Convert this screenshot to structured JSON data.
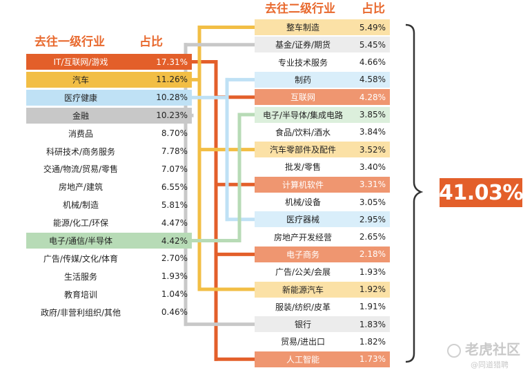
{
  "chart_data": {
    "type": "table",
    "total_label": "41.03%",
    "primary": {
      "header_name": "去往一级行业",
      "header_pct": "占比",
      "rows": [
        {
          "name": "IT/互联网/游戏",
          "pct": "17.31%",
          "color": "#e35f2a",
          "text_white": true
        },
        {
          "name": "汽车",
          "pct": "11.26%",
          "color": "#f2be45",
          "text_white": false
        },
        {
          "name": "医疗健康",
          "pct": "10.28%",
          "color": "#bfe1f5",
          "text_white": false
        },
        {
          "name": "金融",
          "pct": "10.23%",
          "color": "#c8c8c8",
          "text_white": false
        },
        {
          "name": "消费品",
          "pct": "8.70%",
          "color": "",
          "text_white": false
        },
        {
          "name": "科研技术/商务服务",
          "pct": "7.78%",
          "color": "",
          "text_white": false
        },
        {
          "name": "交通/物流/贸易/零售",
          "pct": "7.07%",
          "color": "",
          "text_white": false
        },
        {
          "name": "房地产/建筑",
          "pct": "6.55%",
          "color": "",
          "text_white": false
        },
        {
          "name": "机械/制造",
          "pct": "5.81%",
          "color": "",
          "text_white": false
        },
        {
          "name": "能源/化工/环保",
          "pct": "4.47%",
          "color": "",
          "text_white": false
        },
        {
          "name": "电子/通信/半导体",
          "pct": "4.42%",
          "color": "#b7dbb6",
          "text_white": false
        },
        {
          "name": "广告/传媒/文化/体育",
          "pct": "2.70%",
          "color": "",
          "text_white": false
        },
        {
          "name": "生活服务",
          "pct": "1.93%",
          "color": "",
          "text_white": false
        },
        {
          "name": "教育培训",
          "pct": "1.04%",
          "color": "",
          "text_white": false
        },
        {
          "name": "政府/非营利组织/其他",
          "pct": "0.46%",
          "color": "",
          "text_white": false
        }
      ]
    },
    "secondary": {
      "header_name": "去往二级行业",
      "header_pct": "占比",
      "rows": [
        {
          "name": "整车制造",
          "pct": "5.49%",
          "color": "#fbe1a6",
          "parent": 1,
          "text_white": false
        },
        {
          "name": "基金/证券/期货",
          "pct": "5.45%",
          "color": "#ececec",
          "parent": 3,
          "text_white": false
        },
        {
          "name": "专业技术服务",
          "pct": "4.66%",
          "color": "",
          "parent": -1,
          "text_white": false
        },
        {
          "name": "制药",
          "pct": "4.58%",
          "color": "#d9eefa",
          "parent": 2,
          "text_white": false
        },
        {
          "name": "互联网",
          "pct": "4.28%",
          "color": "#ef9670",
          "parent": 0,
          "text_white": true
        },
        {
          "name": "电子/半导体/集成电路",
          "pct": "3.85%",
          "color": "#dcefdc",
          "parent": 10,
          "text_white": false
        },
        {
          "name": "食品/饮料/酒水",
          "pct": "3.84%",
          "color": "",
          "parent": -1,
          "text_white": false
        },
        {
          "name": "汽车零部件及配件",
          "pct": "3.52%",
          "color": "#fbe1a6",
          "parent": 1,
          "text_white": false
        },
        {
          "name": "批发/零售",
          "pct": "3.40%",
          "color": "",
          "parent": -1,
          "text_white": false
        },
        {
          "name": "计算机软件",
          "pct": "3.31%",
          "color": "#ef9670",
          "parent": 0,
          "text_white": true
        },
        {
          "name": "机械/设备",
          "pct": "3.05%",
          "color": "",
          "parent": -1,
          "text_white": false
        },
        {
          "name": "医疗器械",
          "pct": "2.95%",
          "color": "#d9eefa",
          "parent": 2,
          "text_white": false
        },
        {
          "name": "房地产开发经营",
          "pct": "2.65%",
          "color": "",
          "parent": -1,
          "text_white": false
        },
        {
          "name": "电子商务",
          "pct": "2.18%",
          "color": "#ef9670",
          "parent": 0,
          "text_white": true
        },
        {
          "name": "广告/公关/会展",
          "pct": "1.93%",
          "color": "",
          "parent": -1,
          "text_white": false
        },
        {
          "name": "新能源汽车",
          "pct": "1.92%",
          "color": "#fbe1a6",
          "parent": 1,
          "text_white": false
        },
        {
          "name": "服装/纺织/皮革",
          "pct": "1.91%",
          "color": "",
          "parent": -1,
          "text_white": false
        },
        {
          "name": "银行",
          "pct": "1.83%",
          "color": "#ececec",
          "parent": 3,
          "text_white": false
        },
        {
          "name": "贸易/进出口",
          "pct": "1.82%",
          "color": "",
          "parent": -1,
          "text_white": false
        },
        {
          "name": "人工智能",
          "pct": "1.73%",
          "color": "#ef9670",
          "parent": 0,
          "text_white": true
        }
      ]
    },
    "connector_colors": [
      "#e35f2a",
      "#f2be45",
      "#bfe1f5",
      "#c8c8c8",
      "",
      "",
      "",
      "",
      "",
      "",
      "#b7dbb6"
    ]
  },
  "watermark": {
    "main": "老虎社区",
    "sub": "@同道猎聘"
  }
}
